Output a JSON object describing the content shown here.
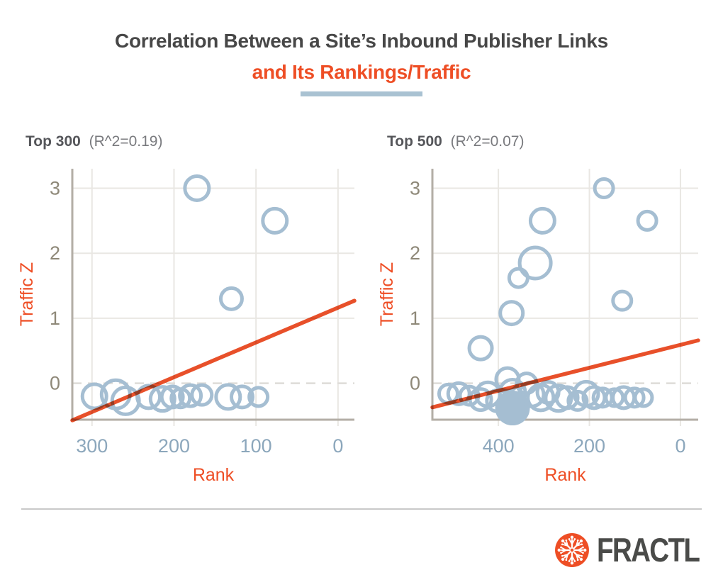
{
  "header": {
    "title_line1": "Correlation Between a Site’s Inbound Publisher Links",
    "title_line2": "and Its Rankings/Traffic"
  },
  "footer": {
    "brand": "FRACTL"
  },
  "icons": {
    "logo": "fractl-snowflake-icon"
  },
  "colors": {
    "accent_orange": "#EE4E25",
    "trend_line": "#E8502A",
    "bubble": "#A5BED2",
    "x_tick_text": "#8CA7BC",
    "y_tick_text": "#8E8878",
    "gridline": "#E9E7E3",
    "zero_dash": "#DEDCD8",
    "spine": "#B3AEA6",
    "underline_bar": "#A9C2D2",
    "title_dark": "#474747",
    "logo_text": "#4A4B49"
  },
  "chart_data": [
    {
      "type": "scatter",
      "title": "Top 300",
      "subtitle": "(R^2=0.19)",
      "r_squared": 0.19,
      "xlabel": "Rank",
      "ylabel": "Traffic Z",
      "x_axis_reversed": true,
      "x_range": [
        324,
        -20
      ],
      "y_range": [
        -0.56,
        3.3
      ],
      "x_ticks": [
        300,
        200,
        100,
        0
      ],
      "y_ticks": [
        0,
        1,
        2,
        3
      ],
      "zero_line_dashed": true,
      "grid": true,
      "trend": {
        "x1": 324,
        "y1": -0.57,
        "x2": -20,
        "y2": 1.27
      },
      "points": [
        {
          "x": 172,
          "y": 3.0,
          "r": 17
        },
        {
          "x": 77,
          "y": 2.5,
          "r": 17
        },
        {
          "x": 130,
          "y": 1.3,
          "r": 15
        },
        {
          "x": 297,
          "y": -0.2,
          "r": 17
        },
        {
          "x": 271,
          "y": -0.17,
          "r": 20
        },
        {
          "x": 259,
          "y": -0.27,
          "r": 19
        },
        {
          "x": 231,
          "y": -0.21,
          "r": 16
        },
        {
          "x": 214,
          "y": -0.24,
          "r": 17
        },
        {
          "x": 202,
          "y": -0.21,
          "r": 15
        },
        {
          "x": 192,
          "y": -0.23,
          "r": 13
        },
        {
          "x": 180,
          "y": -0.19,
          "r": 15
        },
        {
          "x": 166,
          "y": -0.18,
          "r": 14
        },
        {
          "x": 134,
          "y": -0.21,
          "r": 17
        },
        {
          "x": 117,
          "y": -0.21,
          "r": 15
        },
        {
          "x": 97,
          "y": -0.21,
          "r": 13
        }
      ]
    },
    {
      "type": "scatter",
      "title": "Top 500",
      "subtitle": "(R^2=0.07)",
      "r_squared": 0.07,
      "xlabel": "Rank",
      "ylabel": "Traffic Z",
      "x_axis_reversed": true,
      "x_range": [
        545,
        -39
      ],
      "y_range": [
        -0.56,
        3.3
      ],
      "x_ticks": [
        400,
        200,
        0
      ],
      "y_ticks": [
        0,
        1,
        2,
        3
      ],
      "zero_line_dashed": true,
      "grid": true,
      "trend": {
        "x1": 545,
        "y1": -0.37,
        "x2": -39,
        "y2": 0.66
      },
      "points": [
        {
          "x": 168,
          "y": 3.0,
          "r": 13
        },
        {
          "x": 303,
          "y": 2.5,
          "r": 17
        },
        {
          "x": 73,
          "y": 2.5,
          "r": 13
        },
        {
          "x": 319,
          "y": 1.85,
          "r": 22
        },
        {
          "x": 356,
          "y": 1.62,
          "r": 13
        },
        {
          "x": 128,
          "y": 1.27,
          "r": 13
        },
        {
          "x": 371,
          "y": 1.08,
          "r": 16
        },
        {
          "x": 439,
          "y": 0.54,
          "r": 16
        },
        {
          "x": 380,
          "y": 0.06,
          "r": 16
        },
        {
          "x": 338,
          "y": 0.0,
          "r": 14
        },
        {
          "x": 510,
          "y": -0.16,
          "r": 13
        },
        {
          "x": 487,
          "y": -0.16,
          "r": 15
        },
        {
          "x": 464,
          "y": -0.19,
          "r": 13
        },
        {
          "x": 439,
          "y": -0.25,
          "r": 15
        },
        {
          "x": 423,
          "y": -0.17,
          "r": 17
        },
        {
          "x": 402,
          "y": -0.27,
          "r": 15
        },
        {
          "x": 369,
          "y": -0.14,
          "r": 18
        },
        {
          "x": 369,
          "y": -0.38,
          "r": 22,
          "filled": true
        },
        {
          "x": 327,
          "y": -0.17,
          "r": 17
        },
        {
          "x": 307,
          "y": -0.22,
          "r": 18
        },
        {
          "x": 291,
          "y": -0.14,
          "r": 15
        },
        {
          "x": 268,
          "y": -0.23,
          "r": 18
        },
        {
          "x": 249,
          "y": -0.22,
          "r": 15
        },
        {
          "x": 226,
          "y": -0.27,
          "r": 13
        },
        {
          "x": 207,
          "y": -0.16,
          "r": 17
        },
        {
          "x": 190,
          "y": -0.22,
          "r": 15
        },
        {
          "x": 171,
          "y": -0.22,
          "r": 13
        },
        {
          "x": 145,
          "y": -0.22,
          "r": 12
        },
        {
          "x": 125,
          "y": -0.22,
          "r": 15
        },
        {
          "x": 101,
          "y": -0.22,
          "r": 13
        },
        {
          "x": 81,
          "y": -0.22,
          "r": 12
        }
      ]
    }
  ]
}
